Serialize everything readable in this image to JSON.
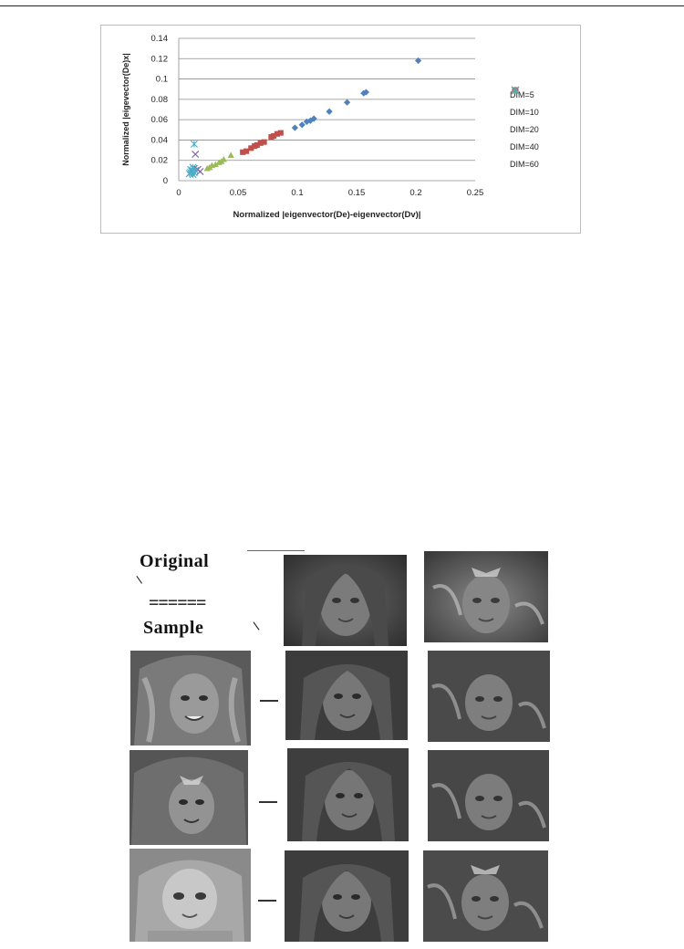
{
  "chart_data": {
    "type": "scatter",
    "xlabel": "Normalized |eigenvector(De)-eigenvector(Dv)|",
    "ylabel": "Normalized |eigevector(De)x|",
    "xlim": [
      0,
      0.25
    ],
    "ylim": [
      0,
      0.14
    ],
    "x_ticks": [
      "0",
      "0.05",
      "0.1",
      "0.15",
      "0.2",
      "0.25"
    ],
    "y_ticks": [
      "0",
      "0.02",
      "0.04",
      "0.06",
      "0.08",
      "0.1",
      "0.12",
      "0.14"
    ],
    "grid": "horizontal",
    "legend_position": "right",
    "series": [
      {
        "name": "DIM=5",
        "marker": "diamond",
        "color": "#4f81bd",
        "points": [
          [
            0.202,
            0.118
          ],
          [
            0.158,
            0.087
          ],
          [
            0.156,
            0.086
          ],
          [
            0.142,
            0.077
          ],
          [
            0.127,
            0.068
          ],
          [
            0.114,
            0.061
          ],
          [
            0.111,
            0.059
          ],
          [
            0.108,
            0.058
          ],
          [
            0.104,
            0.055
          ],
          [
            0.098,
            0.052
          ]
        ]
      },
      {
        "name": "DIM=10",
        "marker": "square",
        "color": "#c0504d",
        "points": [
          [
            0.086,
            0.047
          ],
          [
            0.083,
            0.046
          ],
          [
            0.08,
            0.044
          ],
          [
            0.078,
            0.043
          ],
          [
            0.072,
            0.038
          ],
          [
            0.069,
            0.037
          ],
          [
            0.066,
            0.035
          ],
          [
            0.064,
            0.034
          ],
          [
            0.061,
            0.032
          ],
          [
            0.057,
            0.029
          ],
          [
            0.054,
            0.028
          ]
        ]
      },
      {
        "name": "DIM=20",
        "marker": "triangle",
        "color": "#9bbb59",
        "points": [
          [
            0.044,
            0.025
          ],
          [
            0.038,
            0.021
          ],
          [
            0.036,
            0.019
          ],
          [
            0.034,
            0.018
          ],
          [
            0.031,
            0.016
          ],
          [
            0.028,
            0.015
          ],
          [
            0.026,
            0.013
          ],
          [
            0.024,
            0.012
          ]
        ]
      },
      {
        "name": "DIM=40",
        "marker": "x",
        "color": "#8064a2",
        "points": [
          [
            0.014,
            0.026
          ],
          [
            0.016,
            0.011
          ],
          [
            0.018,
            0.009
          ],
          [
            0.013,
            0.012
          ],
          [
            0.011,
            0.01
          ]
        ]
      },
      {
        "name": "DIM=60",
        "marker": "asterisk",
        "color": "#4bacc6",
        "points": [
          [
            0.013,
            0.036
          ],
          [
            0.012,
            0.013
          ],
          [
            0.01,
            0.011
          ],
          [
            0.011,
            0.009
          ],
          [
            0.013,
            0.008
          ],
          [
            0.009,
            0.007
          ],
          [
            0.014,
            0.01
          ],
          [
            0.012,
            0.006
          ],
          [
            0.01,
            0.008
          ]
        ]
      }
    ]
  },
  "figure": {
    "label_original": "Original",
    "slash": "\\",
    "separator": "======",
    "label_sample": "Sample"
  }
}
